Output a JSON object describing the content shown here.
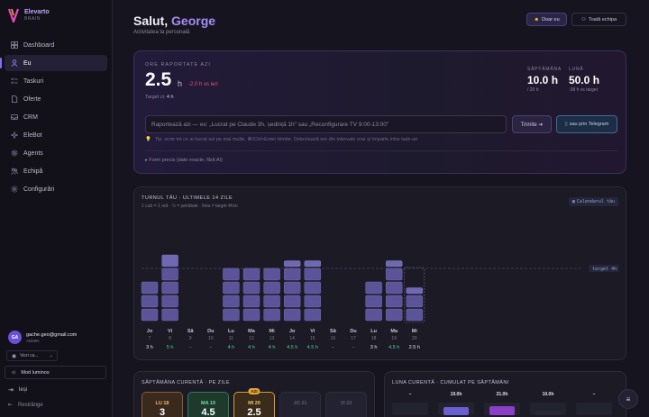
{
  "brand": {
    "name": "Elevarto",
    "sub": "BRAIN"
  },
  "nav": [
    {
      "label": "Dashboard",
      "icon": "grid-icon",
      "active": false
    },
    {
      "label": "Eu",
      "icon": "user-icon",
      "active": true
    },
    {
      "label": "Taskuri",
      "icon": "checklist-icon",
      "active": false
    },
    {
      "label": "Oferte",
      "icon": "document-icon",
      "active": false
    },
    {
      "label": "CRM",
      "icon": "inbox-icon",
      "active": false
    },
    {
      "label": "EleBot",
      "icon": "sparkle-icon",
      "active": false
    },
    {
      "label": "Agents",
      "icon": "gear-icon",
      "active": false
    },
    {
      "label": "Echipă",
      "icon": "team-icon",
      "active": false
    },
    {
      "label": "Configurări",
      "icon": "settings-icon",
      "active": false
    }
  ],
  "user": {
    "initials": "GA",
    "email": "gache.geo@gmail.com",
    "role": "ADMIN"
  },
  "view_select": {
    "value": "Vezi ca..."
  },
  "mode_button": "Mod luminos",
  "logout": "Ieși",
  "restrange": "Restrânge",
  "header": {
    "greeting": "Salut,",
    "name": "George",
    "subtitle": "Activitatea ta personală"
  },
  "filters": {
    "mine": "Doar eu",
    "team": "Toată echipa"
  },
  "report": {
    "label": "ORE RAPORTATE AZI",
    "hours": "2.5",
    "unit": "h",
    "delta": "-2.0 h vs ieri",
    "target_prefix": "Target zi:",
    "target_value": "4 h",
    "week_label": "SĂPTĂMÂNA",
    "week_value": "10.0 h",
    "week_sub": "/ 20 h",
    "month_label": "LUNĂ",
    "month_value": "50.0 h",
    "month_sub": "-38 h vs target",
    "input_placeholder": "Raportează azi — ex: „Lucrat pe Claude 3h, ședință 1h\" sau „Reconfigurare TV 9:00-13:00\"",
    "send_label": "Trimite ➜",
    "telegram_label": "sau prin Telegram",
    "tip": "Tip: scrie tot ce ai lucrat azi pe mai multe, ⌘/Ctrl+Enter trimite. Detectează ore din intervale orar și împarte intre task-uri",
    "form_toggle": "▸ Form precis (date exacte, fără AI)"
  },
  "chart_card": {
    "title": "TURNUL TĂU · ULTIMELE 14 ZILE",
    "subtitle": "1 cub = 1 oră · ½ = jumătate · linia = target 4h/zi",
    "calendar_btn": "Calendarul tău",
    "target_label": "target 4h"
  },
  "chart_data": {
    "type": "bar",
    "categories": [
      "Jo 7",
      "Vi 8",
      "Sâ 9",
      "Du 10",
      "Lu 11",
      "Ma 12",
      "Mi 13",
      "Jo 14",
      "Vi 15",
      "Sâ 16",
      "Du 17",
      "Lu 18",
      "Ma 19",
      "Mi 20"
    ],
    "days": [
      "Jo",
      "Vi",
      "Sâ",
      "Du",
      "Lu",
      "Ma",
      "Mi",
      "Jo",
      "Vi",
      "Sâ",
      "Du",
      "Lu",
      "Ma",
      "Mi"
    ],
    "dates": [
      "7",
      "8",
      "9",
      "10",
      "11",
      "12",
      "13",
      "14",
      "15",
      "16",
      "17",
      "18",
      "19",
      "20"
    ],
    "values": [
      3,
      5,
      0,
      0,
      4,
      4,
      4,
      4.5,
      4.5,
      0,
      0,
      3,
      4.5,
      2.5
    ],
    "value_labels": [
      "3 h",
      "5 h",
      "–",
      "–",
      "4 h",
      "4 h",
      "4 h",
      "4.5 h",
      "4.5 h",
      "–",
      "–",
      "3 h",
      "4.5 h",
      "2.5 h"
    ],
    "target": 4,
    "unit": "h",
    "colors": {
      "block": "#5b5499",
      "block_hi": "#6f68b3",
      "over": "#4ecf9c",
      "today": "#e6e4f0"
    }
  },
  "week_card": {
    "title": "SĂPTĂMÂNA CURENTĂ · PE ZILE",
    "days": [
      {
        "name": "LU 18",
        "value": "3",
        "style": "orange"
      },
      {
        "name": "MA 19",
        "value": "4.5",
        "style": "green"
      },
      {
        "name": "MI 20",
        "value": "2.5",
        "style": "today"
      },
      {
        "name": "JO 21",
        "value": "",
        "style": "empty"
      },
      {
        "name": "VI 22",
        "value": "",
        "style": "empty"
      }
    ],
    "today_badge": "AZI"
  },
  "month_card": {
    "title": "LUNA CURENTĂ · CUMULAT PE SĂPTĂMÂNI",
    "weeks": [
      {
        "label": "–",
        "value": 0
      },
      {
        "label": "19.0h",
        "value": 19
      },
      {
        "label": "21.0h",
        "value": 21
      },
      {
        "label": "10.0h",
        "value": 10
      },
      {
        "label": "–",
        "value": 0
      }
    ]
  }
}
